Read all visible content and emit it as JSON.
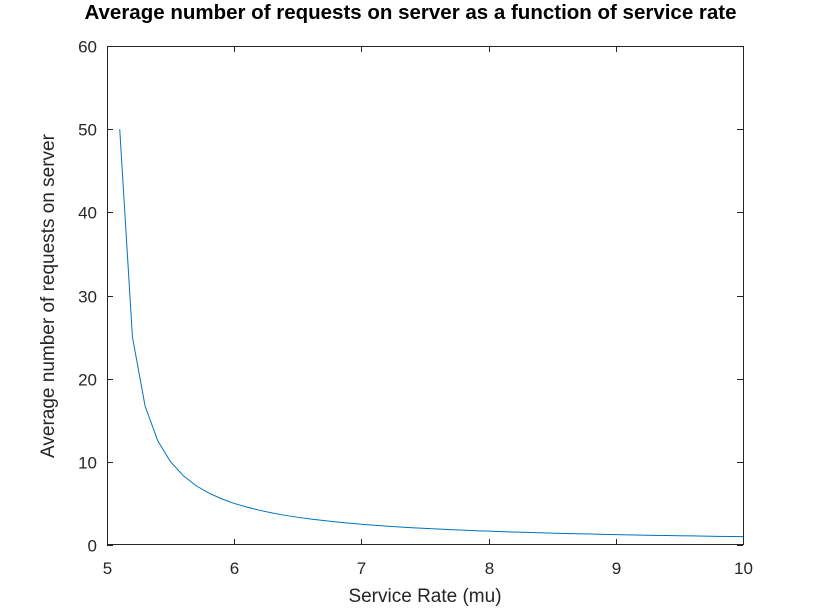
{
  "chart_data": {
    "type": "line",
    "title": "Average number of requests on server as a function of service rate",
    "xlabel": "Service Rate (mu)",
    "ylabel": "Average number of requests on server",
    "xlim": [
      5,
      10
    ],
    "ylim": [
      0,
      60
    ],
    "xticks": [
      5,
      6,
      7,
      8,
      9,
      10
    ],
    "yticks": [
      0,
      10,
      20,
      30,
      40,
      50,
      60
    ],
    "xtick_labels": [
      "5",
      "6",
      "7",
      "8",
      "9",
      "10"
    ],
    "ytick_labels": [
      "0",
      "10",
      "20",
      "30",
      "40",
      "50",
      "60"
    ],
    "grid": false,
    "legend": null,
    "series": [
      {
        "color": "#0072BD",
        "x": [
          5.1,
          5.2,
          5.3,
          5.4,
          5.5,
          5.6,
          5.7,
          5.8,
          5.9,
          6.0,
          6.1,
          6.2,
          6.3,
          6.4,
          6.5,
          6.6,
          6.7,
          6.8,
          6.9,
          7.0,
          7.1,
          7.2,
          7.3,
          7.4,
          7.5,
          7.6,
          7.7,
          7.8,
          7.9,
          8.0,
          8.1,
          8.2,
          8.3,
          8.4,
          8.5,
          8.6,
          8.7,
          8.8,
          8.9,
          9.0,
          9.1,
          9.2,
          9.3,
          9.4,
          9.5,
          9.6,
          9.7,
          9.8,
          9.9,
          10.0
        ],
        "values": [
          50.0,
          25.0,
          16.67,
          12.5,
          10.0,
          8.33,
          7.14,
          6.25,
          5.56,
          5.0,
          4.55,
          4.17,
          3.85,
          3.57,
          3.33,
          3.13,
          2.94,
          2.78,
          2.63,
          2.5,
          2.38,
          2.27,
          2.17,
          2.08,
          2.0,
          1.92,
          1.85,
          1.79,
          1.72,
          1.67,
          1.61,
          1.56,
          1.52,
          1.47,
          1.43,
          1.39,
          1.35,
          1.32,
          1.28,
          1.25,
          1.22,
          1.19,
          1.16,
          1.14,
          1.11,
          1.09,
          1.06,
          1.04,
          1.02,
          1.0
        ]
      }
    ]
  }
}
